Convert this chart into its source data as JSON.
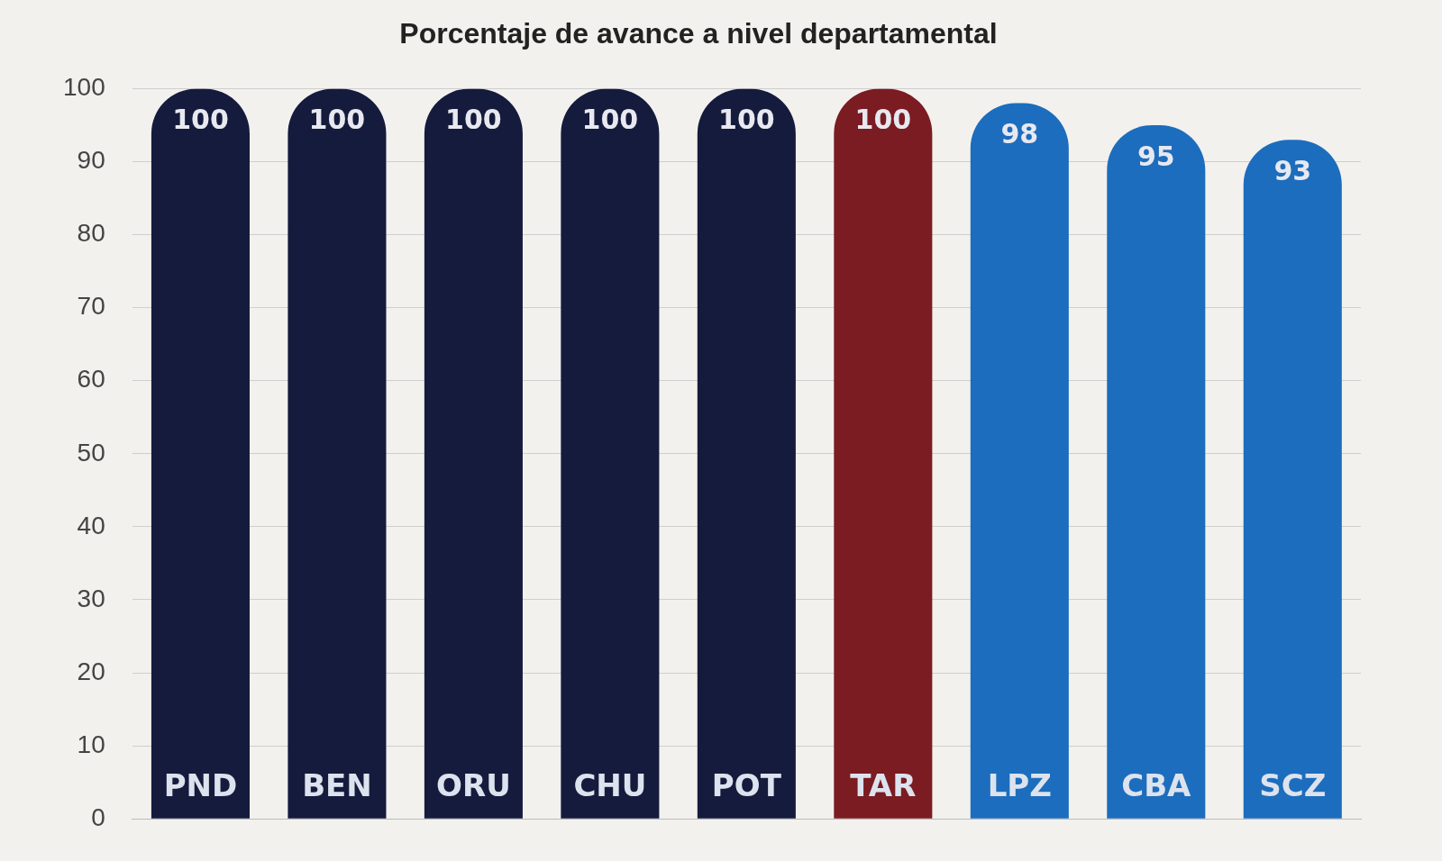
{
  "chart_data": {
    "type": "bar",
    "title": "Porcentaje de avance a nivel departamental",
    "categories": [
      "PND",
      "BEN",
      "ORU",
      "CHU",
      "POT",
      "TAR",
      "LPZ",
      "CBA",
      "SCZ"
    ],
    "values": [
      100,
      100,
      100,
      100,
      100,
      100,
      98,
      95,
      93
    ],
    "colors": [
      "#151b3c",
      "#151b3c",
      "#151b3c",
      "#151b3c",
      "#151b3c",
      "#7a1c22",
      "#1c6dbd",
      "#1c6dbd",
      "#1c6dbd"
    ],
    "ylim": [
      0,
      100
    ],
    "yticks": [
      0,
      10,
      20,
      30,
      40,
      50,
      60,
      70,
      80,
      90,
      100
    ],
    "grid": "y",
    "legend": false,
    "data_labels": true
  }
}
